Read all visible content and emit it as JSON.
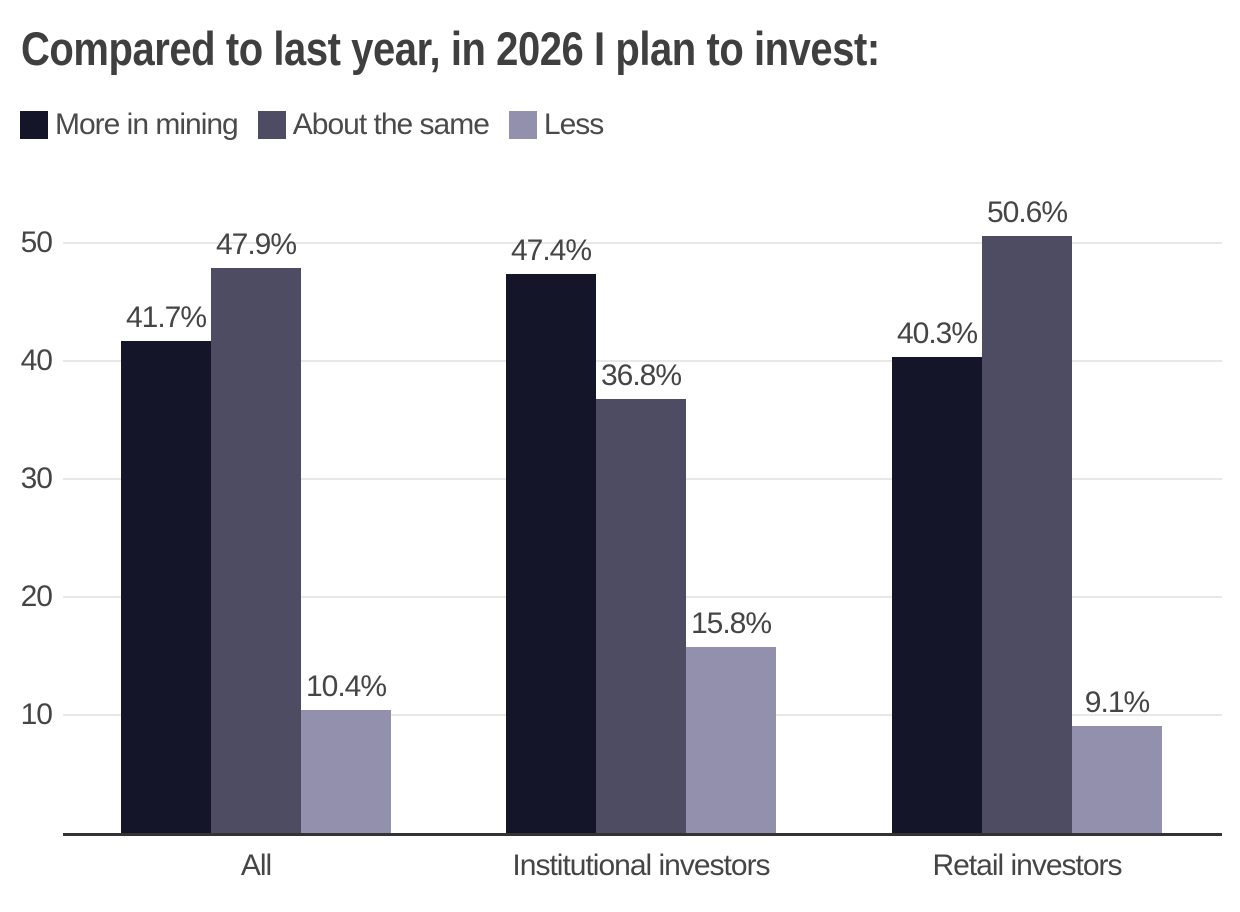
{
  "chart_data": {
    "type": "bar",
    "title": "Compared to last year, in 2026 I plan to invest:",
    "categories": [
      "All",
      "Institutional investors",
      "Retail investors"
    ],
    "series": [
      {
        "name": "More in mining",
        "color": "#15152a",
        "values": [
          41.7,
          47.4,
          40.3
        ]
      },
      {
        "name": "About the same",
        "color": "#4d4c63",
        "values": [
          47.9,
          36.8,
          50.6
        ]
      },
      {
        "name": "Less",
        "color": "#9290ad",
        "values": [
          10.4,
          15.8,
          9.1
        ]
      }
    ],
    "value_suffix": "%",
    "yticks": [
      10,
      20,
      30,
      40,
      50
    ],
    "ylim": [
      0,
      50
    ],
    "grid": true,
    "legend_position": "top-left",
    "xlabel": "",
    "ylabel": ""
  }
}
